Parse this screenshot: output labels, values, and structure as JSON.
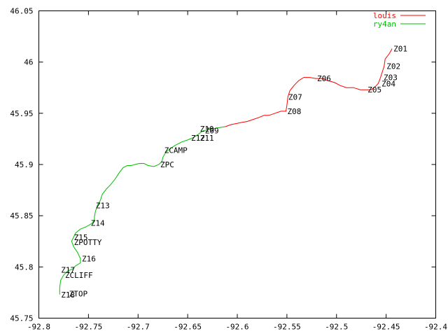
{
  "chart_data": {
    "type": "line",
    "title": "",
    "xlabel": "",
    "ylabel": "",
    "xlim": [
      -92.8,
      -92.4
    ],
    "ylim": [
      45.75,
      46.05
    ],
    "x_ticks": [
      -92.8,
      -92.75,
      -92.7,
      -92.65,
      -92.6,
      -92.55,
      -92.5,
      -92.45,
      -92.4
    ],
    "x_tick_labels": [
      "-92.8",
      "-92.75",
      "-92.7",
      "-92.65",
      "-92.6",
      "-92.55",
      "-92.5",
      "-92.45",
      "-92.4"
    ],
    "y_ticks": [
      45.75,
      45.8,
      45.85,
      45.9,
      45.95,
      46,
      46.05
    ],
    "y_tick_labels": [
      "45.75",
      "45.8",
      "45.85",
      "45.9",
      "45.95",
      "46",
      "46.05"
    ],
    "grid": false,
    "legend_position": "top-right",
    "series": [
      {
        "name": "louis",
        "color": "#ff0000",
        "x": [
          -92.444,
          -92.447,
          -92.451,
          -92.452,
          -92.454,
          -92.456,
          -92.458,
          -92.461,
          -92.465,
          -92.47,
          -92.476,
          -92.483,
          -92.49,
          -92.496,
          -92.502,
          -92.509,
          -92.515,
          -92.521,
          -92.527,
          -92.533,
          -92.538,
          -92.543,
          -92.547,
          -92.549,
          -92.55,
          -92.551,
          -92.556,
          -92.562,
          -92.568,
          -92.573,
          -92.578,
          -92.584,
          -92.59,
          -92.596,
          -92.601,
          -92.606,
          -92.612
        ],
        "y": [
          46.013,
          46.008,
          46.003,
          45.996,
          45.99,
          45.984,
          45.979,
          45.976,
          45.973,
          45.973,
          45.973,
          45.975,
          45.975,
          45.977,
          45.98,
          45.982,
          45.984,
          45.984,
          45.985,
          45.985,
          45.982,
          45.977,
          45.972,
          45.966,
          45.958,
          45.952,
          45.952,
          45.95,
          45.948,
          45.948,
          45.946,
          45.944,
          45.942,
          45.941,
          45.94,
          45.939,
          45.937
        ]
      },
      {
        "name": "ry4an",
        "color": "#00c000",
        "x": [
          -92.612,
          -92.618,
          -92.624,
          -92.63,
          -92.634,
          -92.636,
          -92.64,
          -92.645,
          -92.65,
          -92.656,
          -92.662,
          -92.667,
          -92.672,
          -92.675,
          -92.676,
          -92.679,
          -92.684,
          -92.69,
          -92.694,
          -92.699,
          -92.703,
          -92.707,
          -92.711,
          -92.715,
          -92.719,
          -92.723,
          -92.728,
          -92.732,
          -92.736,
          -92.738,
          -92.741,
          -92.743,
          -92.744,
          -92.744,
          -92.746,
          -92.749,
          -92.753,
          -92.758,
          -92.763,
          -92.765,
          -92.767,
          -92.765,
          -92.761,
          -92.758,
          -92.758,
          -92.763,
          -92.766,
          -92.771,
          -92.775,
          -92.778,
          -92.779,
          -92.779
        ],
        "y": [
          45.937,
          45.936,
          45.935,
          45.934,
          45.933,
          45.932,
          45.929,
          45.926,
          45.924,
          45.922,
          45.919,
          45.916,
          45.912,
          45.907,
          45.903,
          45.9,
          45.898,
          45.899,
          45.901,
          45.901,
          45.9,
          45.899,
          45.899,
          45.897,
          45.892,
          45.886,
          45.88,
          45.876,
          45.871,
          45.865,
          45.86,
          45.854,
          45.849,
          45.846,
          45.843,
          45.841,
          45.839,
          45.837,
          45.833,
          45.829,
          45.825,
          45.82,
          45.814,
          45.808,
          45.804,
          45.801,
          45.798,
          45.796,
          45.792,
          45.787,
          45.78,
          45.773
        ]
      }
    ],
    "waypoints": [
      {
        "label": "Z01",
        "x": -92.444,
        "y": 46.013
      },
      {
        "label": "Z02",
        "x": -92.451,
        "y": 45.996
      },
      {
        "label": "Z03",
        "x": -92.454,
        "y": 45.985
      },
      {
        "label": "Z04",
        "x": -92.456,
        "y": 45.979
      },
      {
        "label": "Z05",
        "x": -92.47,
        "y": 45.973
      },
      {
        "label": "Z06",
        "x": -92.521,
        "y": 45.984
      },
      {
        "label": "Z07",
        "x": -92.55,
        "y": 45.966
      },
      {
        "label": "Z08",
        "x": -92.551,
        "y": 45.952
      },
      {
        "label": "Z09",
        "x": -92.634,
        "y": 45.933
      },
      {
        "label": "Z10",
        "x": -92.639,
        "y": 45.935
      },
      {
        "label": "Z11",
        "x": -92.639,
        "y": 45.926
      },
      {
        "label": "Z12",
        "x": -92.648,
        "y": 45.926
      },
      {
        "label": "ZCAMP",
        "x": -92.675,
        "y": 45.914
      },
      {
        "label": "ZPC",
        "x": -92.679,
        "y": 45.9
      },
      {
        "label": "Z13",
        "x": -92.744,
        "y": 45.86
      },
      {
        "label": "Z14",
        "x": -92.749,
        "y": 45.843
      },
      {
        "label": "Z15",
        "x": -92.766,
        "y": 45.829
      },
      {
        "label": "ZPOTTY",
        "x": -92.766,
        "y": 45.824
      },
      {
        "label": "Z16",
        "x": -92.758,
        "y": 45.808
      },
      {
        "label": "Z17",
        "x": -92.779,
        "y": 45.797
      },
      {
        "label": "ZCLIFF",
        "x": -92.775,
        "y": 45.792
      },
      {
        "label": "ZTOP",
        "x": -92.771,
        "y": 45.774
      },
      {
        "label": "Z18",
        "x": -92.779,
        "y": 45.773
      }
    ]
  }
}
